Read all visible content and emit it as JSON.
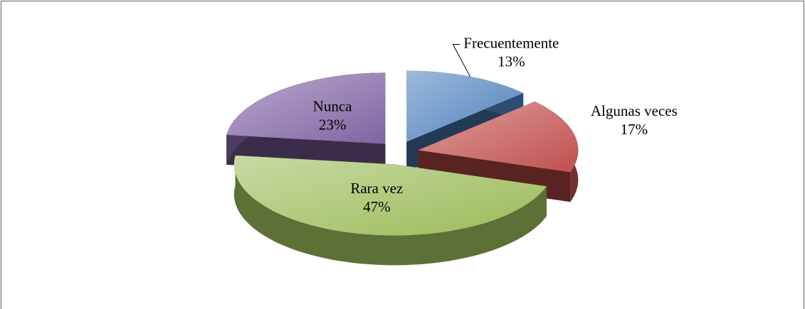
{
  "chart_data": {
    "type": "pie",
    "categories": [
      "Frecuentemente",
      "Algunas veces",
      "Rara vez",
      "Nunca"
    ],
    "values": [
      13,
      17,
      47,
      23
    ],
    "value_labels": [
      "13%",
      "17%",
      "47%",
      "23%"
    ],
    "colors": [
      "#4f81bd",
      "#c0504d",
      "#9bbb59",
      "#8064a2"
    ],
    "exploded": true,
    "three_d": true
  }
}
